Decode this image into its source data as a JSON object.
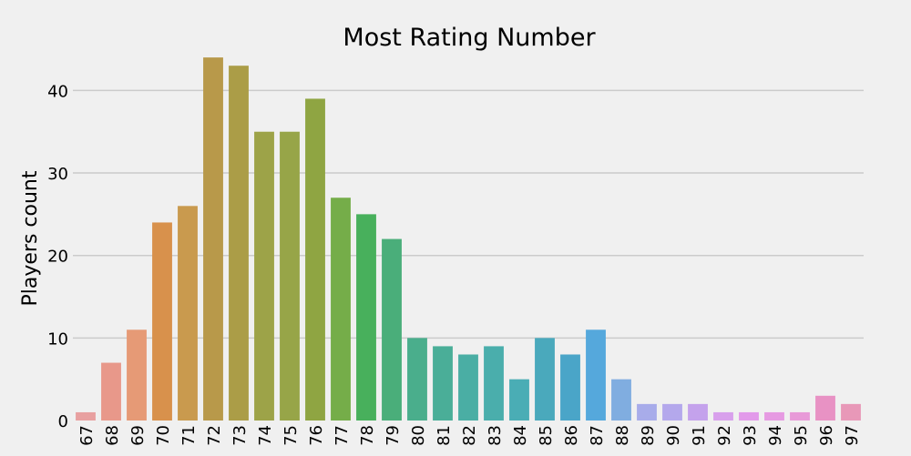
{
  "chart_data": {
    "type": "bar",
    "title": "Most Rating Number",
    "xlabel": "",
    "ylabel": "Players count",
    "categories": [
      "67",
      "68",
      "69",
      "70",
      "71",
      "72",
      "73",
      "74",
      "75",
      "76",
      "77",
      "78",
      "79",
      "80",
      "81",
      "82",
      "83",
      "84",
      "85",
      "86",
      "87",
      "88",
      "89",
      "90",
      "91",
      "92",
      "93",
      "94",
      "95",
      "96",
      "97"
    ],
    "values": [
      1,
      7,
      11,
      24,
      26,
      44,
      43,
      35,
      35,
      39,
      27,
      25,
      22,
      10,
      9,
      8,
      9,
      5,
      10,
      8,
      11,
      5,
      2,
      2,
      2,
      1,
      1,
      1,
      1,
      3,
      2
    ],
    "colors": [
      "#e8a0a0",
      "#e8988a",
      "#e69a76",
      "#d8914c",
      "#c99a4e",
      "#b8994a",
      "#ab9d47",
      "#9da348",
      "#97a548",
      "#8fa542",
      "#75ad49",
      "#48b05c",
      "#4aae7a",
      "#4aae8c",
      "#4aae98",
      "#4aaea4",
      "#4aaeac",
      "#4aadb5",
      "#4aa9bc",
      "#4aa5c8",
      "#55a8dc",
      "#80ade0",
      "#a8acea",
      "#b4a8ec",
      "#c4a2ec",
      "#d8a0ec",
      "#e29aea",
      "#e69ae2",
      "#e89ad8",
      "#e892c4",
      "#e898b8"
    ],
    "yticks": [
      0,
      10,
      20,
      30,
      40
    ],
    "ylim": [
      0,
      46
    ],
    "grid": true,
    "legend": "none"
  }
}
